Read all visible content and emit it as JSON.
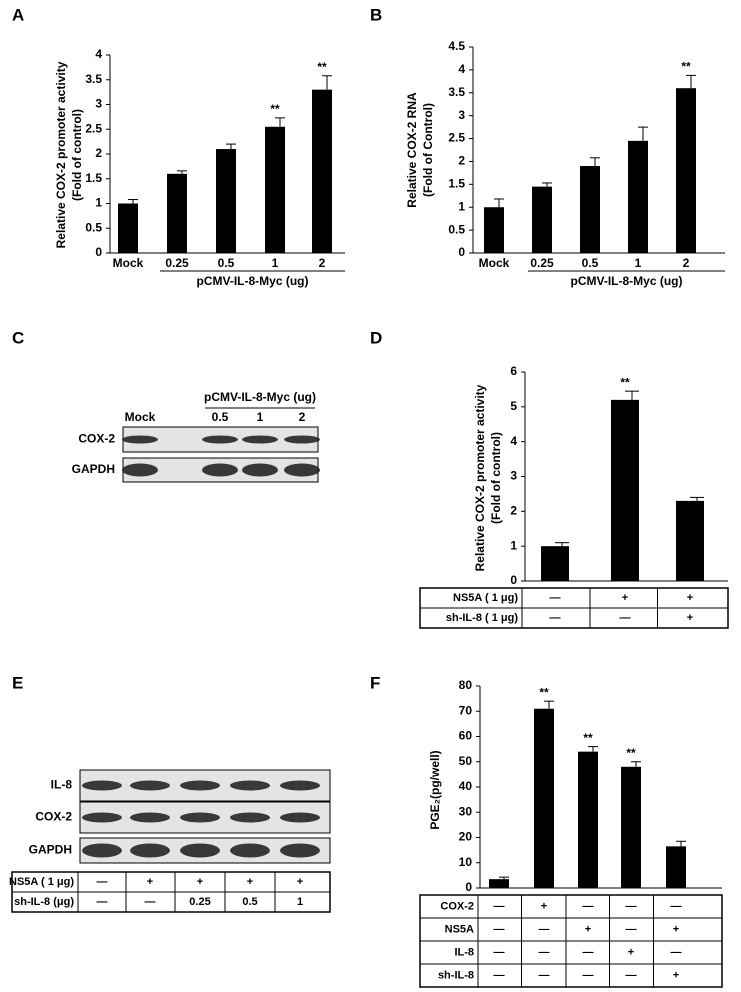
{
  "chart_data": [
    {
      "type": "bar",
      "panel": "A",
      "ylabel": [
        "Relative COX-2 promoter activity",
        "(Fold of control)"
      ],
      "categories": [
        "Mock",
        "0.25",
        "0.5",
        "1",
        "2"
      ],
      "xlabel": "pCMV-IL-8-Myc (ug)",
      "values": [
        1.0,
        1.6,
        2.1,
        2.55,
        3.3
      ],
      "errors": [
        0.08,
        0.06,
        0.1,
        0.18,
        0.28
      ],
      "significance": [
        null,
        null,
        null,
        "**",
        "**"
      ],
      "color": "#000000",
      "ylim": [
        0,
        4
      ],
      "yticks": [
        0,
        0.5,
        1,
        1.5,
        2,
        2.5,
        3,
        3.5,
        4
      ]
    },
    {
      "type": "bar",
      "panel": "B",
      "ylabel": [
        "Relative COX-2 RNA",
        "(Fold of Control)"
      ],
      "categories": [
        "Mock",
        "0.25",
        "0.5",
        "1",
        "2"
      ],
      "xlabel": "pCMV-IL-8-Myc (ug)",
      "values": [
        1.0,
        1.45,
        1.9,
        2.45,
        3.6
      ],
      "errors": [
        0.18,
        0.08,
        0.18,
        0.3,
        0.28
      ],
      "significance": [
        null,
        null,
        null,
        null,
        "**"
      ],
      "color": "#000000",
      "ylim": [
        0,
        4.5
      ],
      "yticks": [
        0,
        0.5,
        1,
        1.5,
        2,
        2.5,
        3,
        3.5,
        4,
        4.5
      ]
    },
    {
      "type": "bar",
      "panel": "D",
      "ylabel": [
        "Relative COX-2 promoter activity",
        "(Fold of control)"
      ],
      "values": [
        1.0,
        5.2,
        2.3
      ],
      "errors": [
        0.1,
        0.25,
        0.1
      ],
      "significance": [
        null,
        "**",
        null
      ],
      "color": "#000000",
      "ylim": [
        0,
        6
      ],
      "yticks": [
        0,
        1,
        2,
        3,
        4,
        5,
        6
      ],
      "table": {
        "rows": [
          {
            "label": "NS5A ( 1 μg)",
            "cells": [
              "—",
              "+",
              "+"
            ]
          },
          {
            "label": "sh-IL-8 ( 1 μg)",
            "cells": [
              "—",
              "—",
              "+"
            ]
          }
        ]
      }
    },
    {
      "type": "bar",
      "panel": "F",
      "ylabel": [
        "PGE₂(pg/well)"
      ],
      "values": [
        3.5,
        71,
        54,
        48,
        16.5
      ],
      "errors": [
        0.8,
        3,
        2,
        2,
        2
      ],
      "significance": [
        null,
        "**",
        "**",
        "**",
        null
      ],
      "color": "#000000",
      "ylim": [
        0,
        80
      ],
      "yticks": [
        0,
        10,
        20,
        30,
        40,
        50,
        60,
        70,
        80
      ],
      "table": {
        "rows": [
          {
            "label": "COX-2",
            "cells": [
              "—",
              "+",
              "—",
              "—",
              "—"
            ]
          },
          {
            "label": "NS5A",
            "cells": [
              "—",
              "—",
              "+",
              "—",
              "+"
            ]
          },
          {
            "label": "IL-8",
            "cells": [
              "—",
              "—",
              "—",
              "+",
              "—"
            ]
          },
          {
            "label": "sh-IL-8",
            "cells": [
              "—",
              "—",
              "—",
              "—",
              "+"
            ]
          }
        ]
      }
    }
  ],
  "blots": [
    {
      "panel": "C",
      "header": "pCMV-IL-8-Myc (ug)",
      "lanes": [
        "Mock",
        "0.5",
        "1",
        "2"
      ],
      "rows": [
        "COX-2",
        "GAPDH"
      ]
    },
    {
      "panel": "E",
      "rows": [
        "IL-8",
        "COX-2",
        "GAPDH"
      ],
      "table": {
        "rows": [
          {
            "label": "NS5A ( 1 μg)",
            "cells": [
              "—",
              "+",
              "+",
              "+",
              "+"
            ]
          },
          {
            "label": "sh-IL-8 (μg)",
            "cells": [
              "—",
              "—",
              "0.25",
              "0.5",
              "1"
            ]
          }
        ]
      }
    }
  ]
}
